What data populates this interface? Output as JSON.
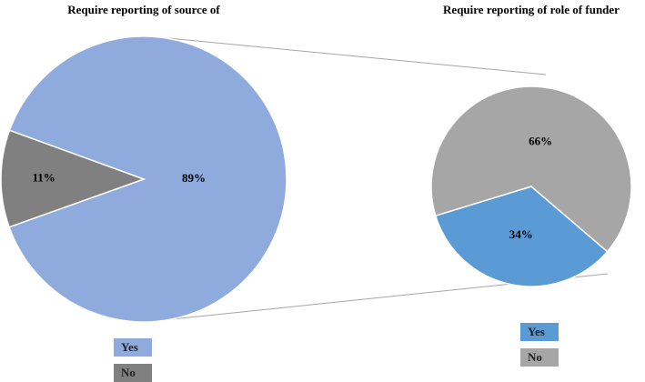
{
  "chart_data": [
    {
      "type": "pie",
      "title": "Require reporting of source of",
      "categories": [
        "Yes",
        "No"
      ],
      "values": [
        89,
        11
      ],
      "value_labels": [
        "89%",
        "11%"
      ],
      "colors": [
        "#8faadc",
        "#808080"
      ]
    },
    {
      "type": "pie",
      "title": "Require reporting of role of funder",
      "categories": [
        "Yes",
        "No"
      ],
      "values": [
        34,
        66
      ],
      "value_labels": [
        "34%",
        "66%"
      ],
      "colors": [
        "#5b9bd5",
        "#a6a6a6"
      ]
    }
  ]
}
